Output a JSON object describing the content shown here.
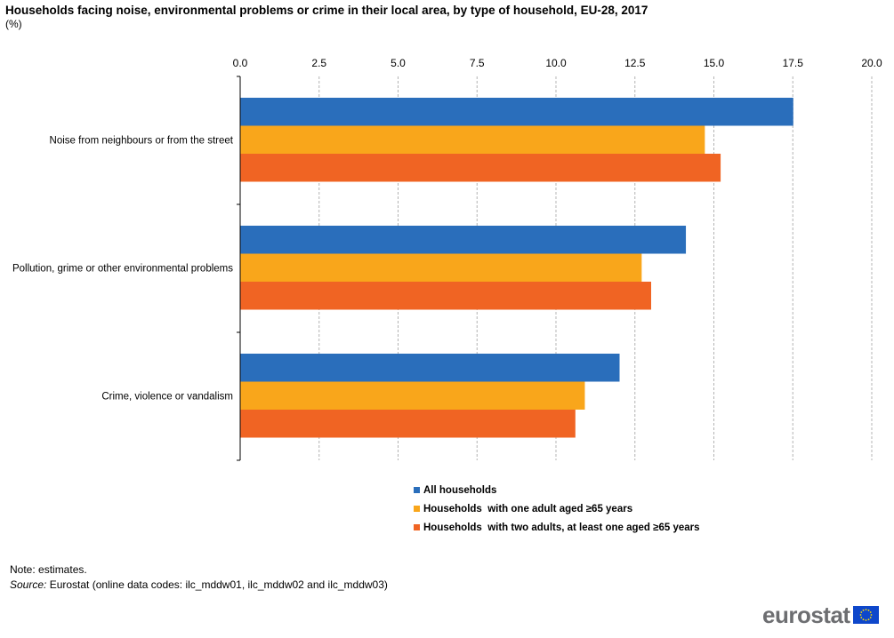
{
  "header": {
    "title": "Households facing noise, environmental problems or crime in their local area, by type of household, EU-28, 2017",
    "subtitle": "(%)"
  },
  "chart_data": {
    "type": "bar",
    "orientation": "horizontal",
    "categories": [
      "Noise from neighbours or from the street",
      "Pollution, grime or other environmental problems",
      "Crime, violence or vandalism"
    ],
    "series": [
      {
        "name": "All households",
        "color": "#2a6ebb",
        "values": [
          17.5,
          14.1,
          12.0
        ]
      },
      {
        "name": "Households  with one adult aged ≥65 years",
        "color": "#f9a61b",
        "values": [
          14.7,
          12.7,
          10.9
        ]
      },
      {
        "name": "Households  with two adults, at least one aged ≥65 years",
        "color": "#f06423",
        "values": [
          15.2,
          13.0,
          10.6
        ]
      }
    ],
    "xlim": [
      0,
      20
    ],
    "xticks": [
      "0.0",
      "2.5",
      "5.0",
      "7.5",
      "10.0",
      "12.5",
      "15.0",
      "17.5",
      "20.0"
    ],
    "xtick_values": [
      0,
      2.5,
      5,
      7.5,
      10,
      12.5,
      15,
      17.5,
      20
    ],
    "grid": true,
    "legend_position": "bottom"
  },
  "footer": {
    "note": "Note: estimates.",
    "source_label": "Source:",
    "source_text": " Eurostat (online data codes: ilc_mddw01, ilc_mddw02 and ilc_mddw03)",
    "logo_text": "eurostat"
  }
}
